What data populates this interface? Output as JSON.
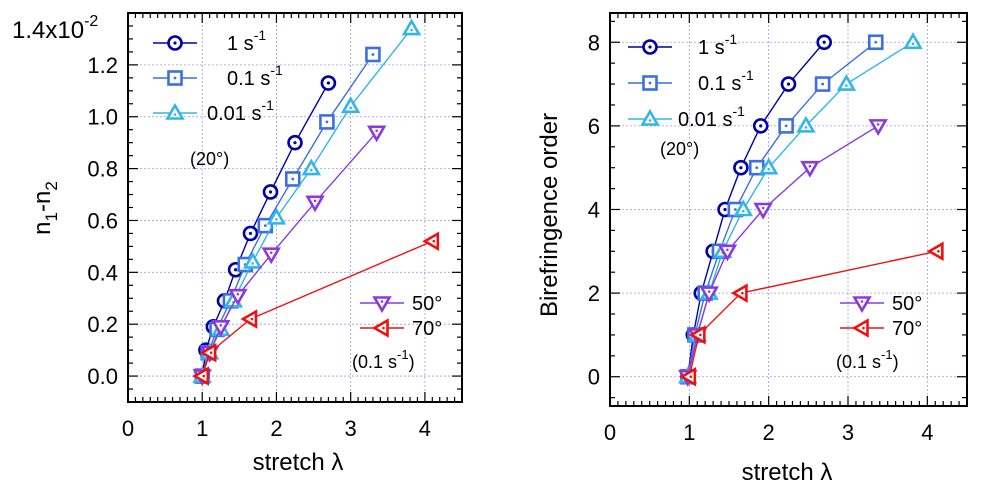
{
  "chart_data": [
    {
      "type": "line",
      "xlabel": "stretch λ",
      "ylabel": "n1-n2",
      "ylabel_main": "n",
      "ylabel_sub1": "1",
      "ylabel_dash": "-n",
      "ylabel_sub2": "2",
      "y_multiplier_base": "1.4x10",
      "y_multiplier_exp": "-2",
      "xlim": [
        0,
        4.5
      ],
      "ylim": [
        -0.1,
        1.4
      ],
      "xticks": [
        0,
        1,
        2,
        3,
        4
      ],
      "xtick_labels": [
        "0",
        "1",
        "2",
        "3",
        "4"
      ],
      "yticks": [
        0.0,
        0.2,
        0.4,
        0.6,
        0.8,
        1.0,
        1.2
      ],
      "ytick_labels": [
        "0.0",
        "0.2",
        "0.4",
        "0.6",
        "0.8",
        "1.0",
        "1.2"
      ],
      "grid": true,
      "legend_placement": "top-left and bottom-right",
      "series": [
        {
          "name": "1 s",
          "sup": "-1",
          "marker": "circle",
          "color": "#0000aa",
          "x": [
            1.0,
            1.05,
            1.15,
            1.3,
            1.45,
            1.65,
            1.92,
            2.25,
            2.7
          ],
          "y": [
            0.0,
            0.1,
            0.19,
            0.29,
            0.41,
            0.55,
            0.71,
            0.9,
            1.13
          ]
        },
        {
          "name": "0.1 s",
          "sup": "-1",
          "marker": "square",
          "color": "#3c6fe0",
          "x": [
            1.0,
            1.08,
            1.2,
            1.38,
            1.58,
            1.85,
            2.22,
            2.68,
            3.3
          ],
          "y": [
            0.0,
            0.09,
            0.18,
            0.29,
            0.43,
            0.58,
            0.76,
            0.98,
            1.24
          ]
        },
        {
          "name": "0.01 s",
          "sup": "-1",
          "marker": "triangle-up",
          "color": "#33b5ea",
          "x": [
            1.0,
            1.1,
            1.25,
            1.42,
            1.68,
            2.0,
            2.47,
            3.0,
            3.82
          ],
          "y": [
            0.0,
            0.09,
            0.18,
            0.29,
            0.44,
            0.61,
            0.8,
            1.04,
            1.34
          ]
        },
        {
          "name": "50°",
          "marker": "triangle-down",
          "color": "#8a3be0",
          "x": [
            1.0,
            1.1,
            1.25,
            1.48,
            1.93,
            2.52,
            3.35
          ],
          "y": [
            0.0,
            0.09,
            0.19,
            0.31,
            0.47,
            0.67,
            0.94
          ]
        },
        {
          "name": "70°",
          "marker": "triangle-left",
          "color": "#ee1111",
          "x": [
            1.0,
            1.1,
            1.65,
            4.1
          ],
          "y": [
            0.0,
            0.09,
            0.22,
            0.52
          ]
        }
      ],
      "legend_note_1": "(20°)",
      "legend_note_2_pre": "(0.1 s",
      "legend_note_2_sup": "-1",
      "legend_note_2_post": ")"
    },
    {
      "type": "line",
      "xlabel": "stretch λ",
      "ylabel": "Birefringence order",
      "xlim": [
        0,
        4.5
      ],
      "ylim": [
        -0.7,
        8.7
      ],
      "xticks": [
        0,
        1,
        2,
        3,
        4
      ],
      "xtick_labels": [
        "0",
        "1",
        "2",
        "3",
        "4"
      ],
      "yticks": [
        0,
        2,
        4,
        6,
        8
      ],
      "ytick_labels": [
        "0",
        "2",
        "4",
        "6",
        "8"
      ],
      "grid": true,
      "legend_placement": "top-left and bottom-right",
      "series": [
        {
          "name": "1 s",
          "sup": "-1",
          "marker": "circle",
          "color": "#0000aa",
          "x": [
            0.98,
            1.05,
            1.15,
            1.3,
            1.45,
            1.65,
            1.9,
            2.25,
            2.7
          ],
          "y": [
            0,
            1,
            2,
            3,
            4,
            5,
            6,
            7,
            8
          ]
        },
        {
          "name": "0.1 s",
          "sup": "-1",
          "marker": "square",
          "color": "#3c6fe0",
          "x": [
            0.98,
            1.07,
            1.2,
            1.38,
            1.58,
            1.85,
            2.22,
            2.68,
            3.35
          ],
          "y": [
            0,
            1,
            2,
            3,
            4,
            5,
            6,
            7,
            8
          ]
        },
        {
          "name": "0.01 s",
          "sup": "-1",
          "marker": "triangle-up",
          "color": "#33b5ea",
          "x": [
            0.98,
            1.1,
            1.25,
            1.42,
            1.68,
            2.0,
            2.47,
            2.98,
            3.82
          ],
          "y": [
            0,
            1,
            2,
            3,
            4,
            5,
            6,
            7,
            8
          ]
        },
        {
          "name": "50°",
          "marker": "triangle-down",
          "color": "#8a3be0",
          "x": [
            0.98,
            1.1,
            1.25,
            1.48,
            1.93,
            2.52,
            3.38
          ],
          "y": [
            0,
            1,
            2,
            3,
            4,
            5,
            6
          ]
        },
        {
          "name": "70°",
          "marker": "triangle-left",
          "color": "#ee1111",
          "x": [
            1.0,
            1.12,
            1.65,
            4.12
          ],
          "y": [
            0,
            1,
            2,
            3
          ]
        }
      ],
      "legend_note_1": "(20°)",
      "legend_note_2_pre": "(0.1 s",
      "legend_note_2_sup": "-1",
      "legend_note_2_post": ")"
    }
  ]
}
